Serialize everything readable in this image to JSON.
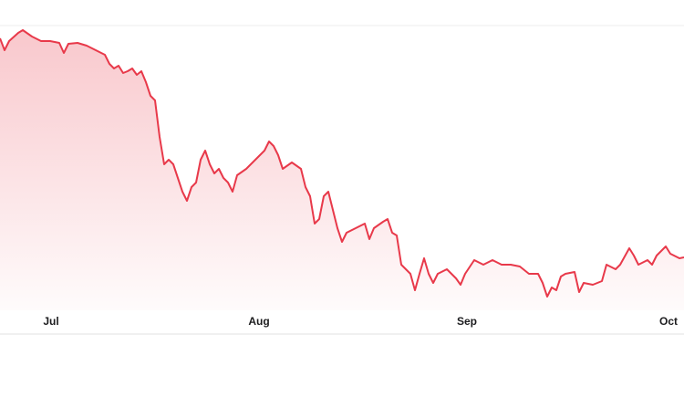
{
  "chart_data": {
    "type": "area",
    "color": "#e8394a",
    "x": [
      0,
      5,
      10,
      20,
      25,
      35,
      45,
      55,
      65,
      70,
      75,
      85,
      95,
      105,
      115,
      120,
      125,
      130,
      135,
      140,
      145,
      150,
      155,
      160,
      165,
      170,
      175,
      180,
      185,
      190,
      195,
      200,
      205,
      210,
      215,
      220,
      225,
      230,
      235,
      240,
      245,
      250,
      255,
      260,
      270,
      275,
      280,
      290,
      295,
      300,
      305,
      310,
      320,
      330,
      335,
      340,
      345,
      350,
      355,
      360,
      365,
      370,
      375,
      380,
      390,
      400,
      405,
      410,
      420,
      425,
      430,
      435,
      440,
      445,
      450,
      455,
      460,
      465,
      470,
      475,
      480,
      490,
      500,
      505,
      510,
      520,
      530,
      540,
      550,
      560,
      570,
      580,
      590,
      595,
      600,
      605,
      610,
      615,
      620,
      630,
      635,
      640,
      650,
      660,
      665,
      675,
      680,
      690,
      695,
      700,
      710,
      715,
      720,
      730,
      735,
      745,
      750
    ],
    "values": [
      298,
      285,
      295,
      304,
      307,
      300,
      295,
      295,
      293,
      282,
      292,
      293,
      290,
      285,
      280,
      270,
      265,
      268,
      260,
      262,
      265,
      258,
      262,
      250,
      235,
      230,
      190,
      160,
      165,
      160,
      145,
      130,
      120,
      135,
      140,
      165,
      175,
      160,
      150,
      155,
      145,
      140,
      130,
      148,
      155,
      160,
      165,
      175,
      185,
      180,
      170,
      155,
      162,
      155,
      135,
      125,
      95,
      100,
      125,
      130,
      110,
      90,
      75,
      85,
      90,
      95,
      78,
      90,
      97,
      100,
      85,
      82,
      50,
      45,
      40,
      22,
      40,
      57,
      40,
      30,
      40,
      45,
      35,
      28,
      40,
      55,
      50,
      55,
      50,
      50,
      48,
      40,
      40,
      30,
      15,
      25,
      22,
      37,
      40,
      42,
      20,
      30,
      28,
      32,
      50,
      45,
      50,
      68,
      60,
      50,
      55,
      50,
      60,
      70,
      62,
      57,
      58
    ],
    "xlim": [
      0,
      750
    ],
    "ylim": [
      0,
      312
    ],
    "xticks": [
      {
        "value": 56,
        "label": "Jul"
      },
      {
        "value": 284,
        "label": "Aug"
      },
      {
        "value": 512,
        "label": "Sep"
      },
      {
        "value": 733,
        "label": "Oct"
      }
    ]
  }
}
